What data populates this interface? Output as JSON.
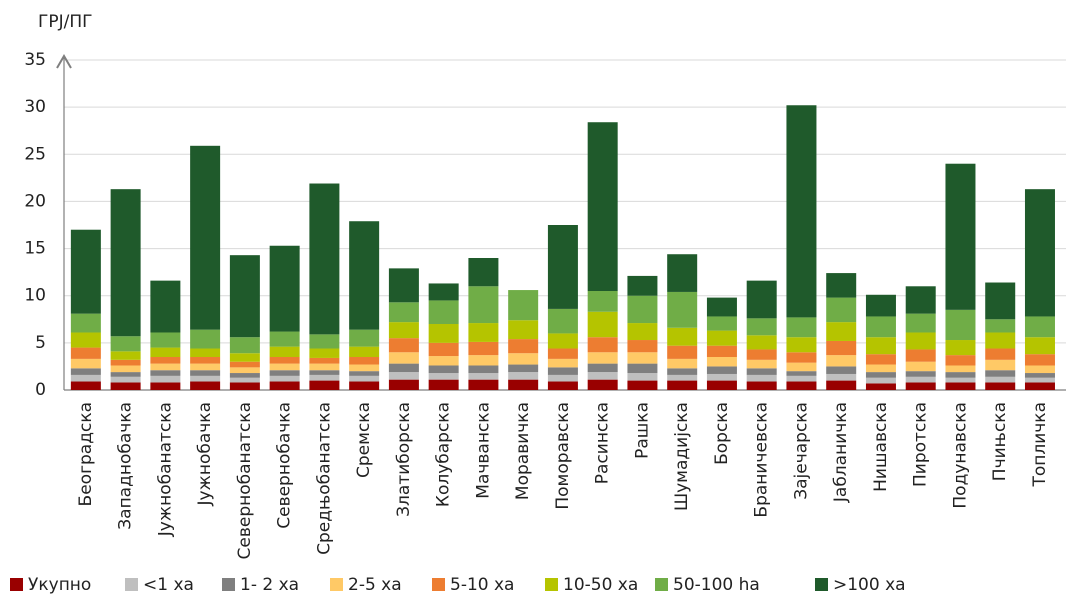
{
  "chart_data": {
    "type": "stacked_bar",
    "y_label": "ГРЈ/ПГ",
    "categories": [
      "Београдска",
      "Западнобачка",
      "Јужнобанатска",
      "Јужнобачка",
      "Севернобанатска",
      "Севернобачка",
      "Средњобанатска",
      "Сремска",
      "Златиборска",
      "Колубарска",
      "Мачванска",
      "Моравичка",
      "Поморавска",
      "Расинска",
      "Рашка",
      "Шумадијска",
      "Борска",
      "Браничевска",
      "Зајечарска",
      "Јабланичка",
      "Нишавска",
      "Пиротска",
      "Подунавска",
      "Пчињска",
      "Топличка"
    ],
    "series": [
      {
        "name": "Укупно",
        "color": "#990000",
        "values": [
          0.9,
          0.8,
          0.8,
          0.9,
          0.8,
          0.9,
          1.0,
          0.9,
          1.1,
          1.1,
          1.1,
          1.1,
          0.9,
          1.1,
          1.0,
          1.0,
          1.0,
          0.9,
          0.9,
          1.0,
          0.7,
          0.8,
          0.8,
          0.8,
          0.8
        ]
      },
      {
        "name": "<1 ха",
        "color": "#bfbfbf",
        "values": [
          0.7,
          0.6,
          0.7,
          0.6,
          0.5,
          0.6,
          0.6,
          0.6,
          0.8,
          0.7,
          0.7,
          0.8,
          0.7,
          0.8,
          0.8,
          0.6,
          0.7,
          0.7,
          0.6,
          0.7,
          0.6,
          0.6,
          0.5,
          0.6,
          0.5
        ]
      },
      {
        "name": "1- 2 ха",
        "color": "#7f7f7f",
        "values": [
          0.7,
          0.5,
          0.6,
          0.6,
          0.5,
          0.6,
          0.5,
          0.5,
          0.9,
          0.8,
          0.8,
          0.8,
          0.8,
          0.9,
          1.0,
          0.7,
          0.8,
          0.7,
          0.5,
          0.8,
          0.6,
          0.6,
          0.6,
          0.7,
          0.5
        ]
      },
      {
        "name": "2-5 ха",
        "color": "#ffc966",
        "values": [
          1.0,
          0.7,
          0.7,
          0.7,
          0.6,
          0.7,
          0.7,
          0.7,
          1.2,
          1.0,
          1.1,
          1.2,
          0.9,
          1.2,
          1.2,
          1.0,
          1.0,
          0.9,
          0.9,
          1.2,
          0.8,
          1.0,
          0.7,
          1.1,
          0.8
        ]
      },
      {
        "name": "5-10 ха",
        "color": "#ed7d31",
        "values": [
          1.2,
          0.6,
          0.7,
          0.7,
          0.6,
          0.7,
          0.6,
          0.8,
          1.5,
          1.4,
          1.4,
          1.5,
          1.1,
          1.6,
          1.3,
          1.4,
          1.2,
          1.1,
          1.1,
          1.5,
          1.1,
          1.3,
          1.1,
          1.2,
          1.2
        ]
      },
      {
        "name": "10-50 ха",
        "color": "#b5c400",
        "values": [
          1.6,
          0.9,
          1.0,
          0.9,
          0.9,
          1.1,
          1.0,
          1.1,
          1.7,
          2.0,
          2.0,
          2.0,
          1.6,
          2.7,
          1.8,
          1.9,
          1.6,
          1.5,
          1.6,
          2.0,
          1.8,
          1.8,
          1.6,
          1.7,
          1.8
        ]
      },
      {
        "name": "50-100 ha",
        "color": "#70ad47",
        "values": [
          2.0,
          1.6,
          1.6,
          2.0,
          1.7,
          1.6,
          1.5,
          1.8,
          2.1,
          2.5,
          3.9,
          3.2,
          2.6,
          2.2,
          2.9,
          3.8,
          1.5,
          1.8,
          2.1,
          2.6,
          2.2,
          2.0,
          3.2,
          1.4,
          2.2
        ]
      },
      {
        "name": ">100 ха",
        "color": "#1f5a2b",
        "values": [
          8.9,
          15.6,
          5.5,
          19.5,
          8.7,
          9.1,
          16.0,
          11.5,
          3.6,
          1.8,
          3.0,
          0,
          8.9,
          17.9,
          2.1,
          4.0,
          2.0,
          4.0,
          22.5,
          2.6,
          2.3,
          2.9,
          15.5,
          3.9,
          13.5
        ]
      }
    ],
    "ylim": [
      0,
      35
    ],
    "yticks": [
      0,
      5,
      10,
      15,
      20,
      25,
      30,
      35
    ],
    "grid": true,
    "legend": "bottom"
  }
}
